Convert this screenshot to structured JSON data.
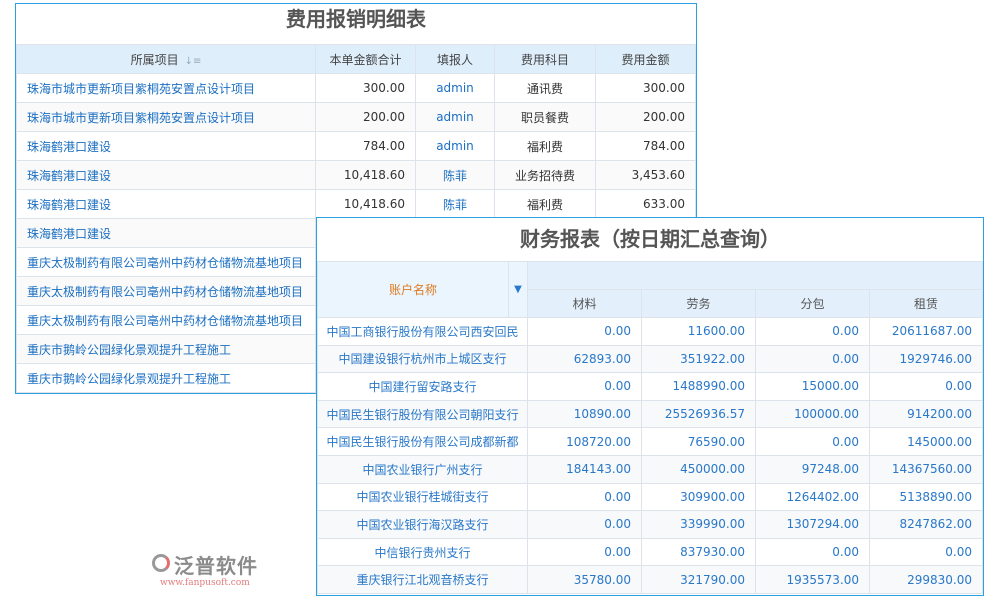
{
  "expense": {
    "title": "费用报销明细表",
    "headers": [
      "所属项目",
      "本单金额合计",
      "填报人",
      "费用科目",
      "费用金额"
    ],
    "rows": [
      [
        "珠海市城市更新项目紫桐苑安置点设计项目",
        "300.00",
        "admin",
        "通讯费",
        "300.00"
      ],
      [
        "珠海市城市更新项目紫桐苑安置点设计项目",
        "200.00",
        "admin",
        "职员餐费",
        "200.00"
      ],
      [
        "珠海鹤港口建设",
        "784.00",
        "admin",
        "福利费",
        "784.00"
      ],
      [
        "珠海鹤港口建设",
        "10,418.60",
        "陈菲",
        "业务招待费",
        "3,453.60"
      ],
      [
        "珠海鹤港口建设",
        "10,418.60",
        "陈菲",
        "福利费",
        "633.00"
      ],
      [
        "珠海鹤港口建设",
        "",
        "",
        "",
        ""
      ],
      [
        "重庆太极制药有限公司亳州中药材仓储物流基地项目",
        "",
        "",
        "",
        ""
      ],
      [
        "重庆太极制药有限公司亳州中药材仓储物流基地项目",
        "",
        "",
        "",
        ""
      ],
      [
        "重庆太极制药有限公司亳州中药材仓储物流基地项目",
        "",
        "",
        "",
        ""
      ],
      [
        "重庆市鹅岭公园绿化景观提升工程施工",
        "",
        "",
        "",
        ""
      ],
      [
        "重庆市鹅岭公园绿化景观提升工程施工",
        "",
        "",
        "",
        ""
      ]
    ]
  },
  "finance": {
    "title": "财务报表（按日期汇总查询）",
    "account_header": "账户名称",
    "headers": [
      "材料",
      "劳务",
      "分包",
      "租赁"
    ],
    "rows": [
      [
        "中国工商银行股份有限公司西安回民",
        "0.00",
        "11600.00",
        "0.00",
        "20611687.00"
      ],
      [
        "中国建设银行杭州市上城区支行",
        "62893.00",
        "351922.00",
        "0.00",
        "1929746.00"
      ],
      [
        "中国建行留安路支行",
        "0.00",
        "1488990.00",
        "15000.00",
        "0.00"
      ],
      [
        "中国民生银行股份有限公司朝阳支行",
        "10890.00",
        "25526936.57",
        "100000.00",
        "914200.00"
      ],
      [
        "中国民生银行股份有限公司成都新都",
        "108720.00",
        "76590.00",
        "0.00",
        "145000.00"
      ],
      [
        "中国农业银行广州支行",
        "184143.00",
        "450000.00",
        "97248.00",
        "14367560.00"
      ],
      [
        "中国农业银行桂城街支行",
        "0.00",
        "309900.00",
        "1264402.00",
        "5138890.00"
      ],
      [
        "中国农业银行海汉路支行",
        "0.00",
        "339990.00",
        "1307294.00",
        "8247862.00"
      ],
      [
        "中信银行贵州支行",
        "0.00",
        "837930.00",
        "0.00",
        "0.00"
      ],
      [
        "重庆银行江北观音桥支行",
        "35780.00",
        "321790.00",
        "1935573.00",
        "299830.00"
      ]
    ]
  },
  "watermark": {
    "name": "泛普软件",
    "url": "www.fanpusoft.com"
  }
}
